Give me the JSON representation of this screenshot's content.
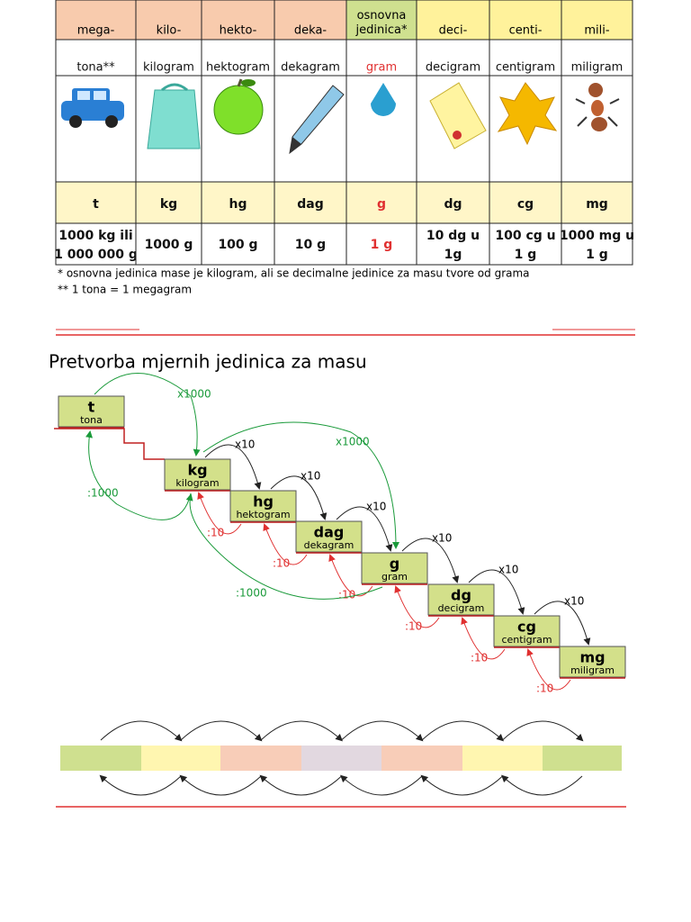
{
  "table": {
    "prefixes": [
      "mega-",
      "kilo-",
      "hekto-",
      "deka-",
      "osnovna jedinica*",
      "deci-",
      "centi-",
      "mili-"
    ],
    "names": [
      "tona**",
      "kilogram",
      "hektogram",
      "dekagram",
      "gram",
      "decigram",
      "centigram",
      "miligram"
    ],
    "symbols": [
      "t",
      "kg",
      "hg",
      "dag",
      "g",
      "dg",
      "cg",
      "mg"
    ],
    "equivalents": [
      [
        "1000 kg ili",
        "1 000 000 g"
      ],
      [
        "1000 g"
      ],
      [
        "100 g"
      ],
      [
        "10 g"
      ],
      [
        "1 g"
      ],
      [
        "10 dg u",
        "1g"
      ],
      [
        "100 cg u",
        "1 g"
      ],
      [
        "1000 mg u",
        "1 g"
      ]
    ]
  },
  "footnotes": [
    "* osnovna jedinica mase je kilogram, ali se decimalne jedinice za masu tvore od grama",
    "** 1 tona = 1 megagram"
  ],
  "diagram": {
    "title": "Pretvorba mjernih jedinica za masu",
    "steps": [
      {
        "symbol": "t",
        "name": "tona"
      },
      {
        "symbol": "kg",
        "name": "kilogram"
      },
      {
        "symbol": "hg",
        "name": "hektogram"
      },
      {
        "symbol": "dag",
        "name": "dekagram"
      },
      {
        "symbol": "g",
        "name": "gram"
      },
      {
        "symbol": "dg",
        "name": "decigram"
      },
      {
        "symbol": "cg",
        "name": "centigram"
      },
      {
        "symbol": "mg",
        "name": "miligram"
      }
    ],
    "multiply_labels": [
      "x10",
      "x10",
      "x10",
      "x10",
      "x10",
      "x10"
    ],
    "divide_labels": [
      ":10",
      ":10",
      ":10",
      ":10",
      ":10",
      ":10"
    ],
    "big_multiply_labels": [
      "x1000",
      "x1000"
    ],
    "big_divide_labels": [
      ":1000",
      ":1000"
    ]
  }
}
